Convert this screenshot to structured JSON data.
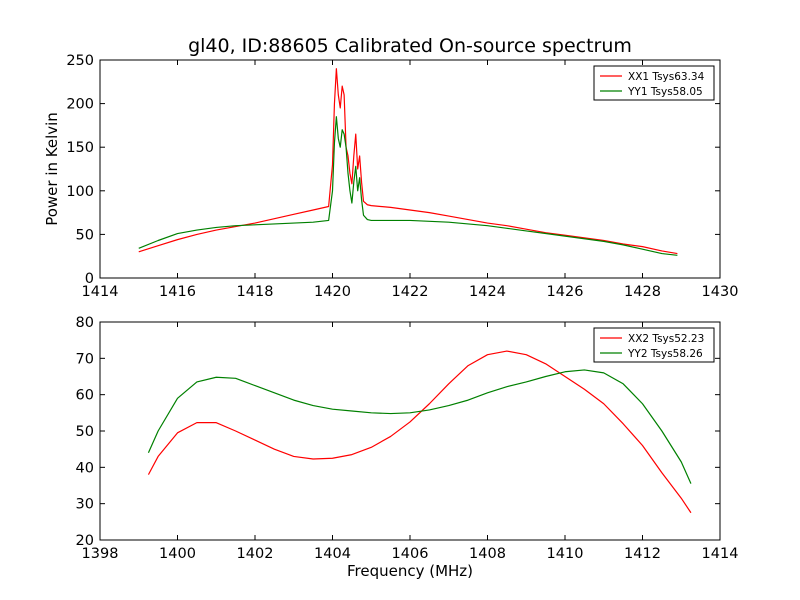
{
  "chart_data": [
    {
      "type": "line",
      "title": "gl40, ID:88605 Calibrated On-source spectrum",
      "xlabel": "",
      "ylabel": "Power in Kelvin",
      "xlim": [
        1414,
        1430
      ],
      "ylim": [
        0,
        250
      ],
      "xticks": [
        1414,
        1416,
        1418,
        1420,
        1422,
        1424,
        1426,
        1428,
        1430
      ],
      "yticks": [
        0,
        50,
        100,
        150,
        200,
        250
      ],
      "grid": false,
      "legend_position": "top-right",
      "series": [
        {
          "name": "XX1 Tsys63.34",
          "color": "#ff0000",
          "x": [
            1415.0,
            1415.5,
            1416.0,
            1416.5,
            1417.0,
            1417.5,
            1418.0,
            1418.5,
            1419.0,
            1419.5,
            1419.9,
            1420.0,
            1420.05,
            1420.1,
            1420.15,
            1420.2,
            1420.25,
            1420.3,
            1420.35,
            1420.4,
            1420.45,
            1420.5,
            1420.55,
            1420.6,
            1420.65,
            1420.7,
            1420.75,
            1420.8,
            1420.9,
            1421.0,
            1421.5,
            1422.0,
            1422.5,
            1423.0,
            1423.5,
            1424.0,
            1424.5,
            1425.0,
            1425.5,
            1426.0,
            1426.5,
            1427.0,
            1427.5,
            1428.0,
            1428.5,
            1428.9
          ],
          "y": [
            30,
            37,
            44,
            50,
            55,
            59,
            63,
            68,
            73,
            78,
            82,
            130,
            200,
            240,
            210,
            195,
            220,
            210,
            150,
            140,
            120,
            108,
            140,
            165,
            125,
            140,
            110,
            88,
            84,
            83,
            81,
            78,
            75,
            71,
            67,
            63,
            60,
            56,
            52,
            49,
            46,
            43,
            39,
            36,
            31,
            28
          ]
        },
        {
          "name": "YY1 Tsys58.05",
          "color": "#008000",
          "x": [
            1415.0,
            1415.5,
            1416.0,
            1416.5,
            1417.0,
            1417.5,
            1418.0,
            1418.5,
            1419.0,
            1419.5,
            1419.9,
            1420.0,
            1420.05,
            1420.1,
            1420.15,
            1420.2,
            1420.25,
            1420.3,
            1420.35,
            1420.4,
            1420.45,
            1420.5,
            1420.55,
            1420.6,
            1420.65,
            1420.7,
            1420.75,
            1420.8,
            1420.9,
            1421.0,
            1421.5,
            1422.0,
            1422.5,
            1423.0,
            1423.5,
            1424.0,
            1424.5,
            1425.0,
            1425.5,
            1426.0,
            1426.5,
            1427.0,
            1427.5,
            1428.0,
            1428.5,
            1428.9
          ],
          "y": [
            34,
            43,
            51,
            55,
            58,
            60,
            61,
            62,
            63,
            64,
            66,
            100,
            155,
            185,
            160,
            150,
            170,
            165,
            150,
            120,
            100,
            86,
            110,
            128,
            100,
            115,
            90,
            72,
            67,
            66,
            66,
            66,
            65,
            64,
            62,
            60,
            57,
            54,
            51,
            48,
            45,
            42,
            38,
            33,
            28,
            26
          ]
        }
      ]
    },
    {
      "type": "line",
      "title": "",
      "xlabel": "Frequency (MHz)",
      "ylabel": "",
      "xlim": [
        1398,
        1414
      ],
      "ylim": [
        20,
        80
      ],
      "xticks": [
        1398,
        1400,
        1402,
        1404,
        1406,
        1408,
        1410,
        1412,
        1414
      ],
      "yticks": [
        20,
        30,
        40,
        50,
        60,
        70,
        80
      ],
      "grid": false,
      "legend_position": "top-right",
      "series": [
        {
          "name": "XX2 Tsys52.23",
          "color": "#ff0000",
          "x": [
            1399.25,
            1399.5,
            1400.0,
            1400.5,
            1401.0,
            1401.5,
            1402.0,
            1402.5,
            1403.0,
            1403.5,
            1404.0,
            1404.5,
            1405.0,
            1405.5,
            1406.0,
            1406.5,
            1407.0,
            1407.5,
            1408.0,
            1408.5,
            1409.0,
            1409.5,
            1410.0,
            1410.5,
            1411.0,
            1411.5,
            1412.0,
            1412.5,
            1413.0,
            1413.25
          ],
          "y": [
            38,
            43,
            49.5,
            52.3,
            52.3,
            50,
            47.5,
            45,
            43,
            42.3,
            42.5,
            43.5,
            45.5,
            48.5,
            52.5,
            57.5,
            63,
            68,
            71,
            72,
            71,
            68.5,
            65,
            61.5,
            57.5,
            52,
            46,
            38.5,
            31.5,
            27.5
          ]
        },
        {
          "name": "YY2 Tsys58.26",
          "color": "#008000",
          "x": [
            1399.25,
            1399.5,
            1400.0,
            1400.5,
            1401.0,
            1401.5,
            1402.0,
            1402.5,
            1403.0,
            1403.5,
            1404.0,
            1404.5,
            1405.0,
            1405.5,
            1406.0,
            1406.5,
            1407.0,
            1407.5,
            1408.0,
            1408.5,
            1409.0,
            1409.5,
            1410.0,
            1410.5,
            1411.0,
            1411.5,
            1412.0,
            1412.5,
            1413.0,
            1413.25
          ],
          "y": [
            44,
            50,
            59,
            63.5,
            64.8,
            64.5,
            62.5,
            60.5,
            58.5,
            57,
            56,
            55.5,
            55,
            54.8,
            55,
            55.8,
            57,
            58.5,
            60.5,
            62.2,
            63.5,
            65,
            66.3,
            66.8,
            66,
            63,
            57.5,
            50,
            41.5,
            35.5
          ]
        }
      ]
    }
  ]
}
